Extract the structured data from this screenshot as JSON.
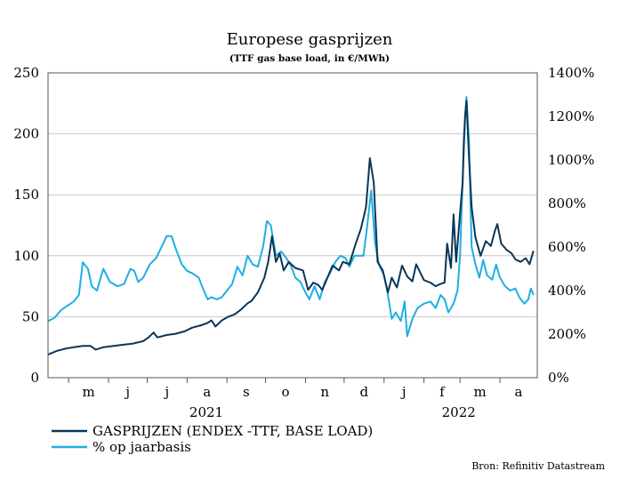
{
  "chart_data": {
    "type": "line",
    "title": "Europese gasprijzen",
    "subtitle": "(TTF gas base load, in €/MWh)",
    "source": "Bron: Refinitiv Datastream",
    "grid": true,
    "legend_placement": "bottom-left",
    "y_left": {
      "min": 0,
      "max": 250,
      "ticks": [
        "0",
        "50",
        "100",
        "150",
        "200",
        "250"
      ]
    },
    "y_right": {
      "min": 0,
      "max": 1400,
      "ticks": [
        "0%",
        "200%",
        "400%",
        "600%",
        "800%",
        "1000%",
        "1200%",
        "1400%"
      ]
    },
    "x_range": [
      "2021-04-15",
      "2022-04-30"
    ],
    "month_ticks": [
      {
        "date": "2021-05-01",
        "label": "m"
      },
      {
        "date": "2021-06-01",
        "label": "j"
      },
      {
        "date": "2021-07-01",
        "label": "j"
      },
      {
        "date": "2021-08-01",
        "label": "a"
      },
      {
        "date": "2021-09-01",
        "label": "s"
      },
      {
        "date": "2021-10-01",
        "label": "o"
      },
      {
        "date": "2021-11-01",
        "label": "n"
      },
      {
        "date": "2021-12-01",
        "label": "d"
      },
      {
        "date": "2022-01-01",
        "label": "j"
      },
      {
        "date": "2022-02-01",
        "label": "f"
      },
      {
        "date": "2022-03-01",
        "label": "m"
      },
      {
        "date": "2022-04-01",
        "label": "a"
      }
    ],
    "year_labels": [
      {
        "date": "2021-08-16",
        "label": "2021"
      },
      {
        "date": "2022-02-28",
        "label": "2022"
      }
    ],
    "series": [
      {
        "name": "GASPRIJZEN (ENDEX -TTF, BASE LOAD)",
        "color": "#0b3558",
        "axis": "left",
        "points": [
          [
            "2021-04-15",
            19
          ],
          [
            "2021-04-22",
            22
          ],
          [
            "2021-04-29",
            24
          ],
          [
            "2021-05-05",
            25
          ],
          [
            "2021-05-12",
            26
          ],
          [
            "2021-05-18",
            26
          ],
          [
            "2021-05-22",
            23
          ],
          [
            "2021-05-28",
            25
          ],
          [
            "2021-06-05",
            26
          ],
          [
            "2021-06-12",
            27
          ],
          [
            "2021-06-20",
            28
          ],
          [
            "2021-06-28",
            30
          ],
          [
            "2021-07-02",
            33
          ],
          [
            "2021-07-06",
            37
          ],
          [
            "2021-07-09",
            33
          ],
          [
            "2021-07-16",
            35
          ],
          [
            "2021-07-23",
            36
          ],
          [
            "2021-07-30",
            38
          ],
          [
            "2021-08-05",
            41
          ],
          [
            "2021-08-12",
            43
          ],
          [
            "2021-08-17",
            45
          ],
          [
            "2021-08-20",
            47
          ],
          [
            "2021-08-23",
            42
          ],
          [
            "2021-08-28",
            47
          ],
          [
            "2021-09-02",
            50
          ],
          [
            "2021-09-07",
            52
          ],
          [
            "2021-09-12",
            56
          ],
          [
            "2021-09-17",
            61
          ],
          [
            "2021-09-20",
            63
          ],
          [
            "2021-09-25",
            70
          ],
          [
            "2021-09-30",
            82
          ],
          [
            "2021-10-03",
            95
          ],
          [
            "2021-10-06",
            116
          ],
          [
            "2021-10-09",
            95
          ],
          [
            "2021-10-12",
            102
          ],
          [
            "2021-10-15",
            88
          ],
          [
            "2021-10-19",
            95
          ],
          [
            "2021-10-24",
            90
          ],
          [
            "2021-10-30",
            88
          ],
          [
            "2021-11-03",
            72
          ],
          [
            "2021-11-07",
            78
          ],
          [
            "2021-11-11",
            76
          ],
          [
            "2021-11-14",
            72
          ],
          [
            "2021-11-18",
            82
          ],
          [
            "2021-11-22",
            92
          ],
          [
            "2021-11-27",
            88
          ],
          [
            "2021-11-30",
            95
          ],
          [
            "2021-12-05",
            93
          ],
          [
            "2021-12-10",
            110
          ],
          [
            "2021-12-14",
            122
          ],
          [
            "2021-12-18",
            140
          ],
          [
            "2021-12-21",
            180
          ],
          [
            "2021-12-24",
            160
          ],
          [
            "2021-12-27",
            95
          ],
          [
            "2021-12-31",
            88
          ],
          [
            "2022-01-04",
            70
          ],
          [
            "2022-01-07",
            82
          ],
          [
            "2022-01-11",
            74
          ],
          [
            "2022-01-15",
            92
          ],
          [
            "2022-01-19",
            83
          ],
          [
            "2022-01-23",
            79
          ],
          [
            "2022-01-26",
            93
          ],
          [
            "2022-02-01",
            80
          ],
          [
            "2022-02-06",
            78
          ],
          [
            "2022-02-10",
            75
          ],
          [
            "2022-02-14",
            77
          ],
          [
            "2022-02-17",
            78
          ],
          [
            "2022-02-19",
            110
          ],
          [
            "2022-02-22",
            90
          ],
          [
            "2022-02-24",
            134
          ],
          [
            "2022-02-26",
            95
          ],
          [
            "2022-03-01",
            135
          ],
          [
            "2022-03-03",
            160
          ],
          [
            "2022-03-04",
            195
          ],
          [
            "2022-03-05",
            215
          ],
          [
            "2022-03-06",
            227
          ],
          [
            "2022-03-08",
            180
          ],
          [
            "2022-03-10",
            140
          ],
          [
            "2022-03-13",
            115
          ],
          [
            "2022-03-17",
            100
          ],
          [
            "2022-03-21",
            112
          ],
          [
            "2022-03-25",
            108
          ],
          [
            "2022-03-28",
            120
          ],
          [
            "2022-03-30",
            126
          ],
          [
            "2022-04-02",
            110
          ],
          [
            "2022-04-06",
            105
          ],
          [
            "2022-04-10",
            102
          ],
          [
            "2022-04-13",
            97
          ],
          [
            "2022-04-17",
            95
          ],
          [
            "2022-04-21",
            98
          ],
          [
            "2022-04-24",
            93
          ],
          [
            "2022-04-27",
            104
          ]
        ]
      },
      {
        "name": "% op jaarbasis",
        "color": "#1faee3",
        "axis": "right",
        "points": [
          [
            "2021-04-15",
            260
          ],
          [
            "2021-04-20",
            275
          ],
          [
            "2021-04-25",
            310
          ],
          [
            "2021-04-30",
            330
          ],
          [
            "2021-05-05",
            350
          ],
          [
            "2021-05-09",
            380
          ],
          [
            "2021-05-12",
            530
          ],
          [
            "2021-05-16",
            500
          ],
          [
            "2021-05-19",
            420
          ],
          [
            "2021-05-23",
            400
          ],
          [
            "2021-05-28",
            500
          ],
          [
            "2021-06-02",
            440
          ],
          [
            "2021-06-08",
            420
          ],
          [
            "2021-06-13",
            430
          ],
          [
            "2021-06-18",
            500
          ],
          [
            "2021-06-21",
            490
          ],
          [
            "2021-06-24",
            440
          ],
          [
            "2021-06-28",
            460
          ],
          [
            "2021-07-03",
            520
          ],
          [
            "2021-07-08",
            550
          ],
          [
            "2021-07-13",
            610
          ],
          [
            "2021-07-16",
            650
          ],
          [
            "2021-07-20",
            650
          ],
          [
            "2021-07-24",
            580
          ],
          [
            "2021-07-28",
            520
          ],
          [
            "2021-08-01",
            490
          ],
          [
            "2021-08-05",
            480
          ],
          [
            "2021-08-10",
            460
          ],
          [
            "2021-08-14",
            400
          ],
          [
            "2021-08-17",
            360
          ],
          [
            "2021-08-20",
            370
          ],
          [
            "2021-08-24",
            360
          ],
          [
            "2021-08-28",
            370
          ],
          [
            "2021-09-01",
            400
          ],
          [
            "2021-09-05",
            430
          ],
          [
            "2021-09-09",
            510
          ],
          [
            "2021-09-13",
            470
          ],
          [
            "2021-09-17",
            560
          ],
          [
            "2021-09-21",
            520
          ],
          [
            "2021-09-25",
            510
          ],
          [
            "2021-09-29",
            600
          ],
          [
            "2021-10-02",
            720
          ],
          [
            "2021-10-05",
            700
          ],
          [
            "2021-10-09",
            560
          ],
          [
            "2021-10-13",
            580
          ],
          [
            "2021-10-17",
            550
          ],
          [
            "2021-10-21",
            510
          ],
          [
            "2021-10-24",
            460
          ],
          [
            "2021-10-28",
            440
          ],
          [
            "2021-11-01",
            390
          ],
          [
            "2021-11-04",
            360
          ],
          [
            "2021-11-08",
            420
          ],
          [
            "2021-11-12",
            360
          ],
          [
            "2021-11-16",
            440
          ],
          [
            "2021-11-20",
            480
          ],
          [
            "2021-11-24",
            530
          ],
          [
            "2021-11-28",
            560
          ],
          [
            "2021-12-02",
            550
          ],
          [
            "2021-12-05",
            510
          ],
          [
            "2021-12-09",
            560
          ],
          [
            "2021-12-13",
            560
          ],
          [
            "2021-12-16",
            560
          ],
          [
            "2021-12-19",
            700
          ],
          [
            "2021-12-22",
            860
          ],
          [
            "2021-12-25",
            620
          ],
          [
            "2021-12-28",
            520
          ],
          [
            "2022-01-01",
            470
          ],
          [
            "2022-01-04",
            380
          ],
          [
            "2022-01-07",
            270
          ],
          [
            "2022-01-10",
            300
          ],
          [
            "2022-01-14",
            260
          ],
          [
            "2022-01-17",
            350
          ],
          [
            "2022-01-19",
            190
          ],
          [
            "2022-01-23",
            270
          ],
          [
            "2022-01-27",
            320
          ],
          [
            "2022-02-01",
            340
          ],
          [
            "2022-02-06",
            350
          ],
          [
            "2022-02-10",
            320
          ],
          [
            "2022-02-14",
            380
          ],
          [
            "2022-02-17",
            360
          ],
          [
            "2022-02-20",
            300
          ],
          [
            "2022-02-24",
            340
          ],
          [
            "2022-02-27",
            400
          ],
          [
            "2022-03-01",
            560
          ],
          [
            "2022-03-03",
            900
          ],
          [
            "2022-03-05",
            1200
          ],
          [
            "2022-03-06",
            1290
          ],
          [
            "2022-03-08",
            1080
          ],
          [
            "2022-03-10",
            600
          ],
          [
            "2022-03-13",
            520
          ],
          [
            "2022-03-16",
            460
          ],
          [
            "2022-03-19",
            540
          ],
          [
            "2022-03-22",
            470
          ],
          [
            "2022-03-26",
            450
          ],
          [
            "2022-03-29",
            520
          ],
          [
            "2022-04-01",
            460
          ],
          [
            "2022-04-05",
            420
          ],
          [
            "2022-04-09",
            400
          ],
          [
            "2022-04-13",
            410
          ],
          [
            "2022-04-16",
            370
          ],
          [
            "2022-04-20",
            340
          ],
          [
            "2022-04-23",
            360
          ],
          [
            "2022-04-25",
            410
          ],
          [
            "2022-04-27",
            380
          ]
        ]
      }
    ]
  }
}
